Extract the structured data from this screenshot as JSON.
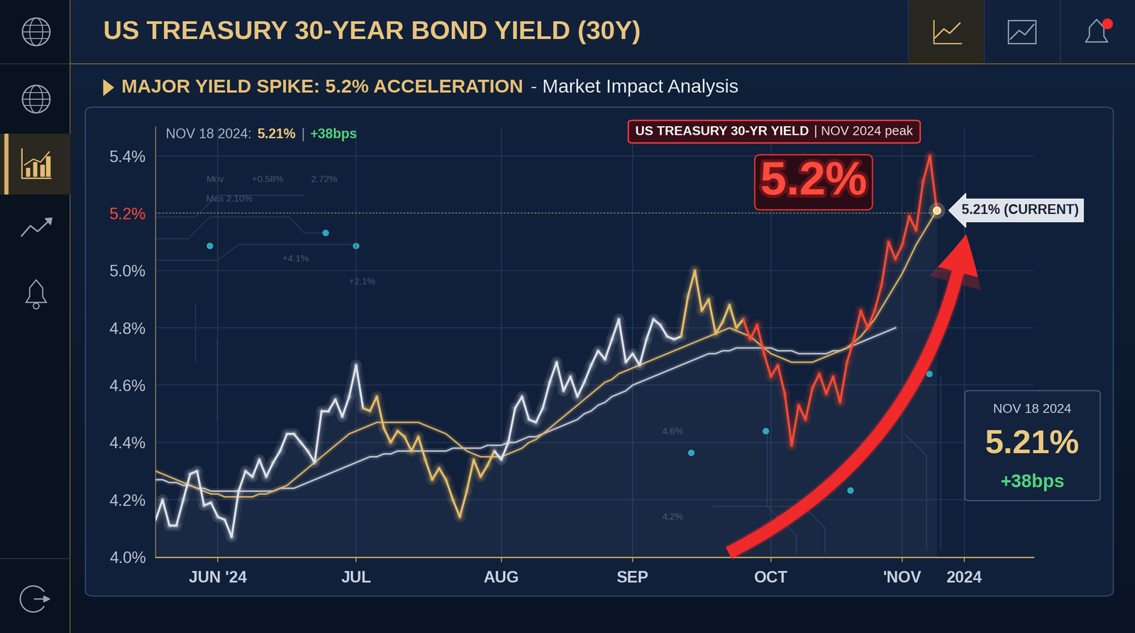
{
  "chart_data": {
    "type": "line",
    "title": "US TREASURY 30-YEAR BOND YIELD (30Y)",
    "subtitle": "MAJOR YIELD SPIKE: 5.2% ACCELERATION",
    "subtitle_note": "- Market Impact Analysis",
    "header_parts": [
      "NOV 18 2024:",
      "5.21%",
      "|",
      "+38bps"
    ],
    "peak_label": "US TREASURY 30-YR YIELD",
    "peak_note": "| NOV 2024 peak",
    "peak_value_label": "5.2%",
    "current_label": "5.21% (CURRENT)",
    "summary": {
      "date": "NOV 18 2024",
      "value_label": "5.21%",
      "change": "+38bps"
    },
    "background_texts": [
      "Mov",
      "+0.58%",
      "2.72%",
      "Mas 2.10%",
      "+4.1%",
      "+2.1%",
      "4.6%",
      "4.2%"
    ],
    "categories": [
      null,
      null,
      null,
      null,
      null,
      null,
      null,
      null,
      null,
      "JUN '24",
      null,
      null,
      null,
      null,
      null,
      null,
      null,
      null,
      null,
      null,
      null,
      null,
      null,
      null,
      null,
      null,
      null,
      null,
      null,
      "JUL",
      null,
      null,
      null,
      null,
      null,
      null,
      null,
      null,
      null,
      null,
      null,
      null,
      null,
      null,
      null,
      null,
      null,
      null,
      null,
      null,
      "AUG",
      null,
      null,
      null,
      null,
      null,
      null,
      null,
      null,
      null,
      null,
      null,
      null,
      null,
      null,
      null,
      null,
      null,
      null,
      "SEP",
      null,
      null,
      null,
      null,
      null,
      null,
      null,
      null,
      null,
      null,
      null,
      null,
      null,
      null,
      null,
      null,
      null,
      null,
      null,
      "OCT",
      null,
      null,
      null,
      null,
      null,
      null,
      null,
      null,
      null,
      null,
      null,
      null,
      null,
      null,
      null,
      null,
      null,
      null,
      "'NOV",
      null,
      null,
      null,
      null,
      null,
      null,
      null,
      null,
      "2024",
      null,
      null,
      null,
      null,
      null,
      null,
      null,
      null,
      null,
      null
    ],
    "series": [
      {
        "color": "#c9ced8",
        "values": [
          4.27,
          4.27,
          4.26,
          4.26,
          4.25,
          4.25,
          4.24,
          4.24,
          4.23,
          4.23,
          4.23,
          4.23,
          4.23,
          4.23,
          4.23,
          4.23,
          4.23,
          4.23,
          4.24,
          4.24,
          4.24,
          4.25,
          4.26,
          4.27,
          4.28,
          4.29,
          4.3,
          4.31,
          4.32,
          4.33,
          4.34,
          4.35,
          4.35,
          4.36,
          4.36,
          4.37,
          4.37,
          4.37,
          4.37,
          4.37,
          4.37,
          4.37,
          4.37,
          4.38,
          4.38,
          4.38,
          4.38,
          4.38,
          4.39,
          4.39,
          4.39,
          4.4,
          4.4,
          4.41,
          4.42,
          4.42,
          4.43,
          4.44,
          4.45,
          4.46,
          4.47,
          4.48,
          4.5,
          4.51,
          4.53,
          4.54,
          4.56,
          4.57,
          4.58,
          4.6,
          4.61,
          4.62,
          4.63,
          4.64,
          4.65,
          4.66,
          4.67,
          4.68,
          4.69,
          4.7,
          4.71,
          4.71,
          4.72,
          4.72,
          4.73,
          4.73,
          4.73,
          4.73,
          4.73,
          4.73,
          4.72,
          4.72,
          4.72,
          4.71,
          4.71,
          4.71,
          4.71,
          4.71,
          4.72,
          4.72,
          4.73,
          4.74,
          4.75,
          4.76,
          4.77,
          4.78,
          4.79,
          4.8,
          null,
          null,
          null,
          null,
          null,
          null,
          null,
          null,
          null,
          null,
          null,
          null,
          null,
          null,
          null,
          null,
          null,
          null,
          null,
          null
        ]
      },
      {
        "color": "#e0b567",
        "values": [
          4.3,
          4.29,
          4.28,
          4.27,
          4.26,
          4.25,
          4.24,
          4.23,
          4.22,
          4.22,
          4.21,
          4.21,
          4.21,
          4.21,
          4.21,
          4.22,
          4.22,
          4.23,
          4.24,
          4.25,
          4.27,
          4.29,
          4.31,
          4.33,
          4.35,
          4.37,
          4.39,
          4.41,
          4.43,
          4.44,
          4.45,
          4.46,
          4.47,
          4.47,
          4.47,
          4.47,
          4.47,
          4.47,
          4.47,
          4.46,
          4.45,
          4.44,
          4.43,
          4.41,
          4.39,
          4.37,
          4.36,
          4.35,
          4.35,
          4.35,
          4.35,
          4.36,
          4.37,
          4.38,
          4.4,
          4.41,
          4.43,
          4.45,
          4.47,
          4.49,
          4.51,
          4.53,
          4.55,
          4.57,
          4.59,
          4.61,
          4.62,
          4.64,
          4.65,
          4.66,
          4.67,
          4.68,
          4.69,
          4.7,
          4.71,
          4.72,
          4.73,
          4.74,
          4.75,
          4.76,
          4.77,
          4.78,
          4.79,
          4.8,
          4.79,
          4.78,
          4.77,
          4.75,
          4.73,
          4.71,
          4.7,
          4.69,
          4.68,
          4.68,
          4.68,
          4.68,
          4.69,
          4.7,
          4.71,
          4.72,
          4.73,
          4.75,
          4.77,
          4.8,
          4.83,
          4.87,
          4.91,
          4.95,
          4.99,
          5.04,
          5.09,
          5.13,
          5.17,
          5.21,
          null,
          null,
          null,
          null,
          null,
          null,
          null,
          null,
          null,
          null,
          null,
          null,
          null,
          null
        ]
      },
      {
        "values": [
          4.13,
          4.2,
          4.11,
          4.11,
          4.2,
          4.29,
          4.3,
          4.18,
          4.19,
          4.14,
          4.13,
          4.07,
          4.23,
          4.3,
          4.28,
          4.34,
          4.28,
          4.33,
          4.37,
          4.43,
          4.43,
          4.4,
          4.37,
          4.33,
          4.51,
          4.51,
          4.55,
          4.49,
          4.56,
          4.67,
          4.52,
          4.51,
          4.56,
          4.45,
          4.4,
          4.44,
          4.42,
          4.37,
          4.42,
          4.34,
          4.27,
          4.31,
          4.27,
          4.2,
          4.14,
          4.23,
          4.34,
          4.28,
          4.32,
          4.37,
          4.34,
          4.4,
          4.52,
          4.56,
          4.48,
          4.47,
          4.52,
          4.61,
          4.68,
          4.58,
          4.63,
          4.56,
          4.61,
          4.67,
          4.72,
          4.69,
          4.76,
          4.83,
          4.68,
          4.71,
          4.67,
          4.76,
          4.83,
          4.81,
          4.77,
          4.76,
          4.77,
          4.91,
          5.0,
          4.86,
          4.9,
          4.78,
          4.82,
          4.88,
          4.8,
          4.83,
          4.76,
          4.81,
          4.71,
          4.63,
          4.67,
          4.57,
          4.39,
          4.53,
          4.48,
          4.59,
          4.64,
          4.57,
          4.63,
          4.54,
          4.68,
          4.76,
          4.86,
          4.8,
          4.86,
          4.95,
          5.1,
          5.04,
          5.09,
          5.19,
          5.14,
          5.31,
          5.4,
          5.21,
          null,
          null,
          null,
          null,
          null,
          null,
          null,
          null,
          null,
          null,
          null,
          null,
          null,
          null
        ],
        "colors": [
          "#dfe3ec",
          "#dfe3ec",
          "#dfe3ec",
          "#dfe3ec",
          "#dfe3ec",
          "#dfe3ec",
          "#dfe3ec",
          "#dfe3ec",
          "#dfe3ec",
          "#dfe3ec",
          "#dfe3ec",
          "#dfe3ec",
          "#dfe3ec",
          "#dfe3ec",
          "#dfe3ec",
          "#dfe3ec",
          "#dfe3ec",
          "#dfe3ec",
          "#dfe3ec",
          "#dfe3ec",
          "#dfe3ec",
          "#dfe3ec",
          "#dfe3ec",
          "#dfe3ec",
          "#dfe3ec",
          "#dfe3ec",
          "#dfe3ec",
          "#dfe3ec",
          "#dfe3ec",
          "#dfe3ec",
          "#dfe3ec",
          "#e6bd6a",
          "#e6bd6a",
          "#e6bd6a",
          "#e6bd6a",
          "#e6bd6a",
          "#e6bd6a",
          "#e6bd6a",
          "#e6bd6a",
          "#e6bd6a",
          "#e6bd6a",
          "#e6bd6a",
          "#e6bd6a",
          "#e6bd6a",
          "#e6bd6a",
          "#e6bd6a",
          "#e6bd6a",
          "#e6bd6a",
          "#e6bd6a",
          "#e6bd6a",
          "#dfe3ec",
          "#dfe3ec",
          "#dfe3ec",
          "#dfe3ec",
          "#dfe3ec",
          "#dfe3ec",
          "#dfe3ec",
          "#dfe3ec",
          "#dfe3ec",
          "#dfe3ec",
          "#dfe3ec",
          "#dfe3ec",
          "#dfe3ec",
          "#dfe3ec",
          "#dfe3ec",
          "#dfe3ec",
          "#dfe3ec",
          "#dfe3ec",
          "#dfe3ec",
          "#dfe3ec",
          "#dfe3ec",
          "#dfe3ec",
          "#dfe3ec",
          "#dfe3ec",
          "#dfe3ec",
          "#dfe3ec",
          "#dfe3ec",
          "#e6bd6a",
          "#e6bd6a",
          "#e6bd6a",
          "#e6bd6a",
          "#e6bd6a",
          "#e6bd6a",
          "#e6bd6a",
          "#e6bd6a",
          "#e6bd6a",
          "#ff4a32",
          "#ff4a32",
          "#ff4a32",
          "#ff4a32",
          "#ff4a32",
          "#ff4a32",
          "#ff4a32",
          "#ff4a32",
          "#ff4a32",
          "#ff4a32",
          "#ff4a32",
          "#ff4a32",
          "#ff4a32",
          "#ff4a32",
          "#ff4a32",
          "#ff4a32",
          "#ff4a32",
          "#ff4a32",
          "#ff4a32",
          "#ff4a32",
          "#ff4a32",
          "#ff4a32",
          "#ff4a32",
          "#ff4a32",
          "#ff4a32",
          "#ff4a32",
          "#ff4a32",
          "#ff4a32",
          "#ff4a32",
          "#ff4a32",
          "#ff4a32",
          "#ff4a32",
          "#ff4a32",
          "#ff4a32",
          "#ff4a32",
          "#ff4a32",
          "#ff4a32",
          "#ff4a32",
          "#ff4a32",
          "#ff4a32",
          "#ff4a32",
          "#ff4a32"
        ]
      }
    ],
    "reference_line": 5.2,
    "ylim": [
      4.0,
      5.5
    ],
    "yticks": [
      {
        "value": 4.0,
        "label": "4.0%"
      },
      {
        "value": 4.2,
        "label": "4.2%"
      },
      {
        "value": 4.4,
        "label": "4.4%"
      },
      {
        "value": 4.6,
        "label": "4.6%"
      },
      {
        "value": 4.8,
        "label": "4.8%"
      },
      {
        "value": 5.0,
        "label": "5.0%"
      },
      {
        "value": 5.2,
        "label": "5.2%"
      },
      {
        "value": 5.4,
        "label": "5.4%"
      }
    ],
    "grid": true
  }
}
